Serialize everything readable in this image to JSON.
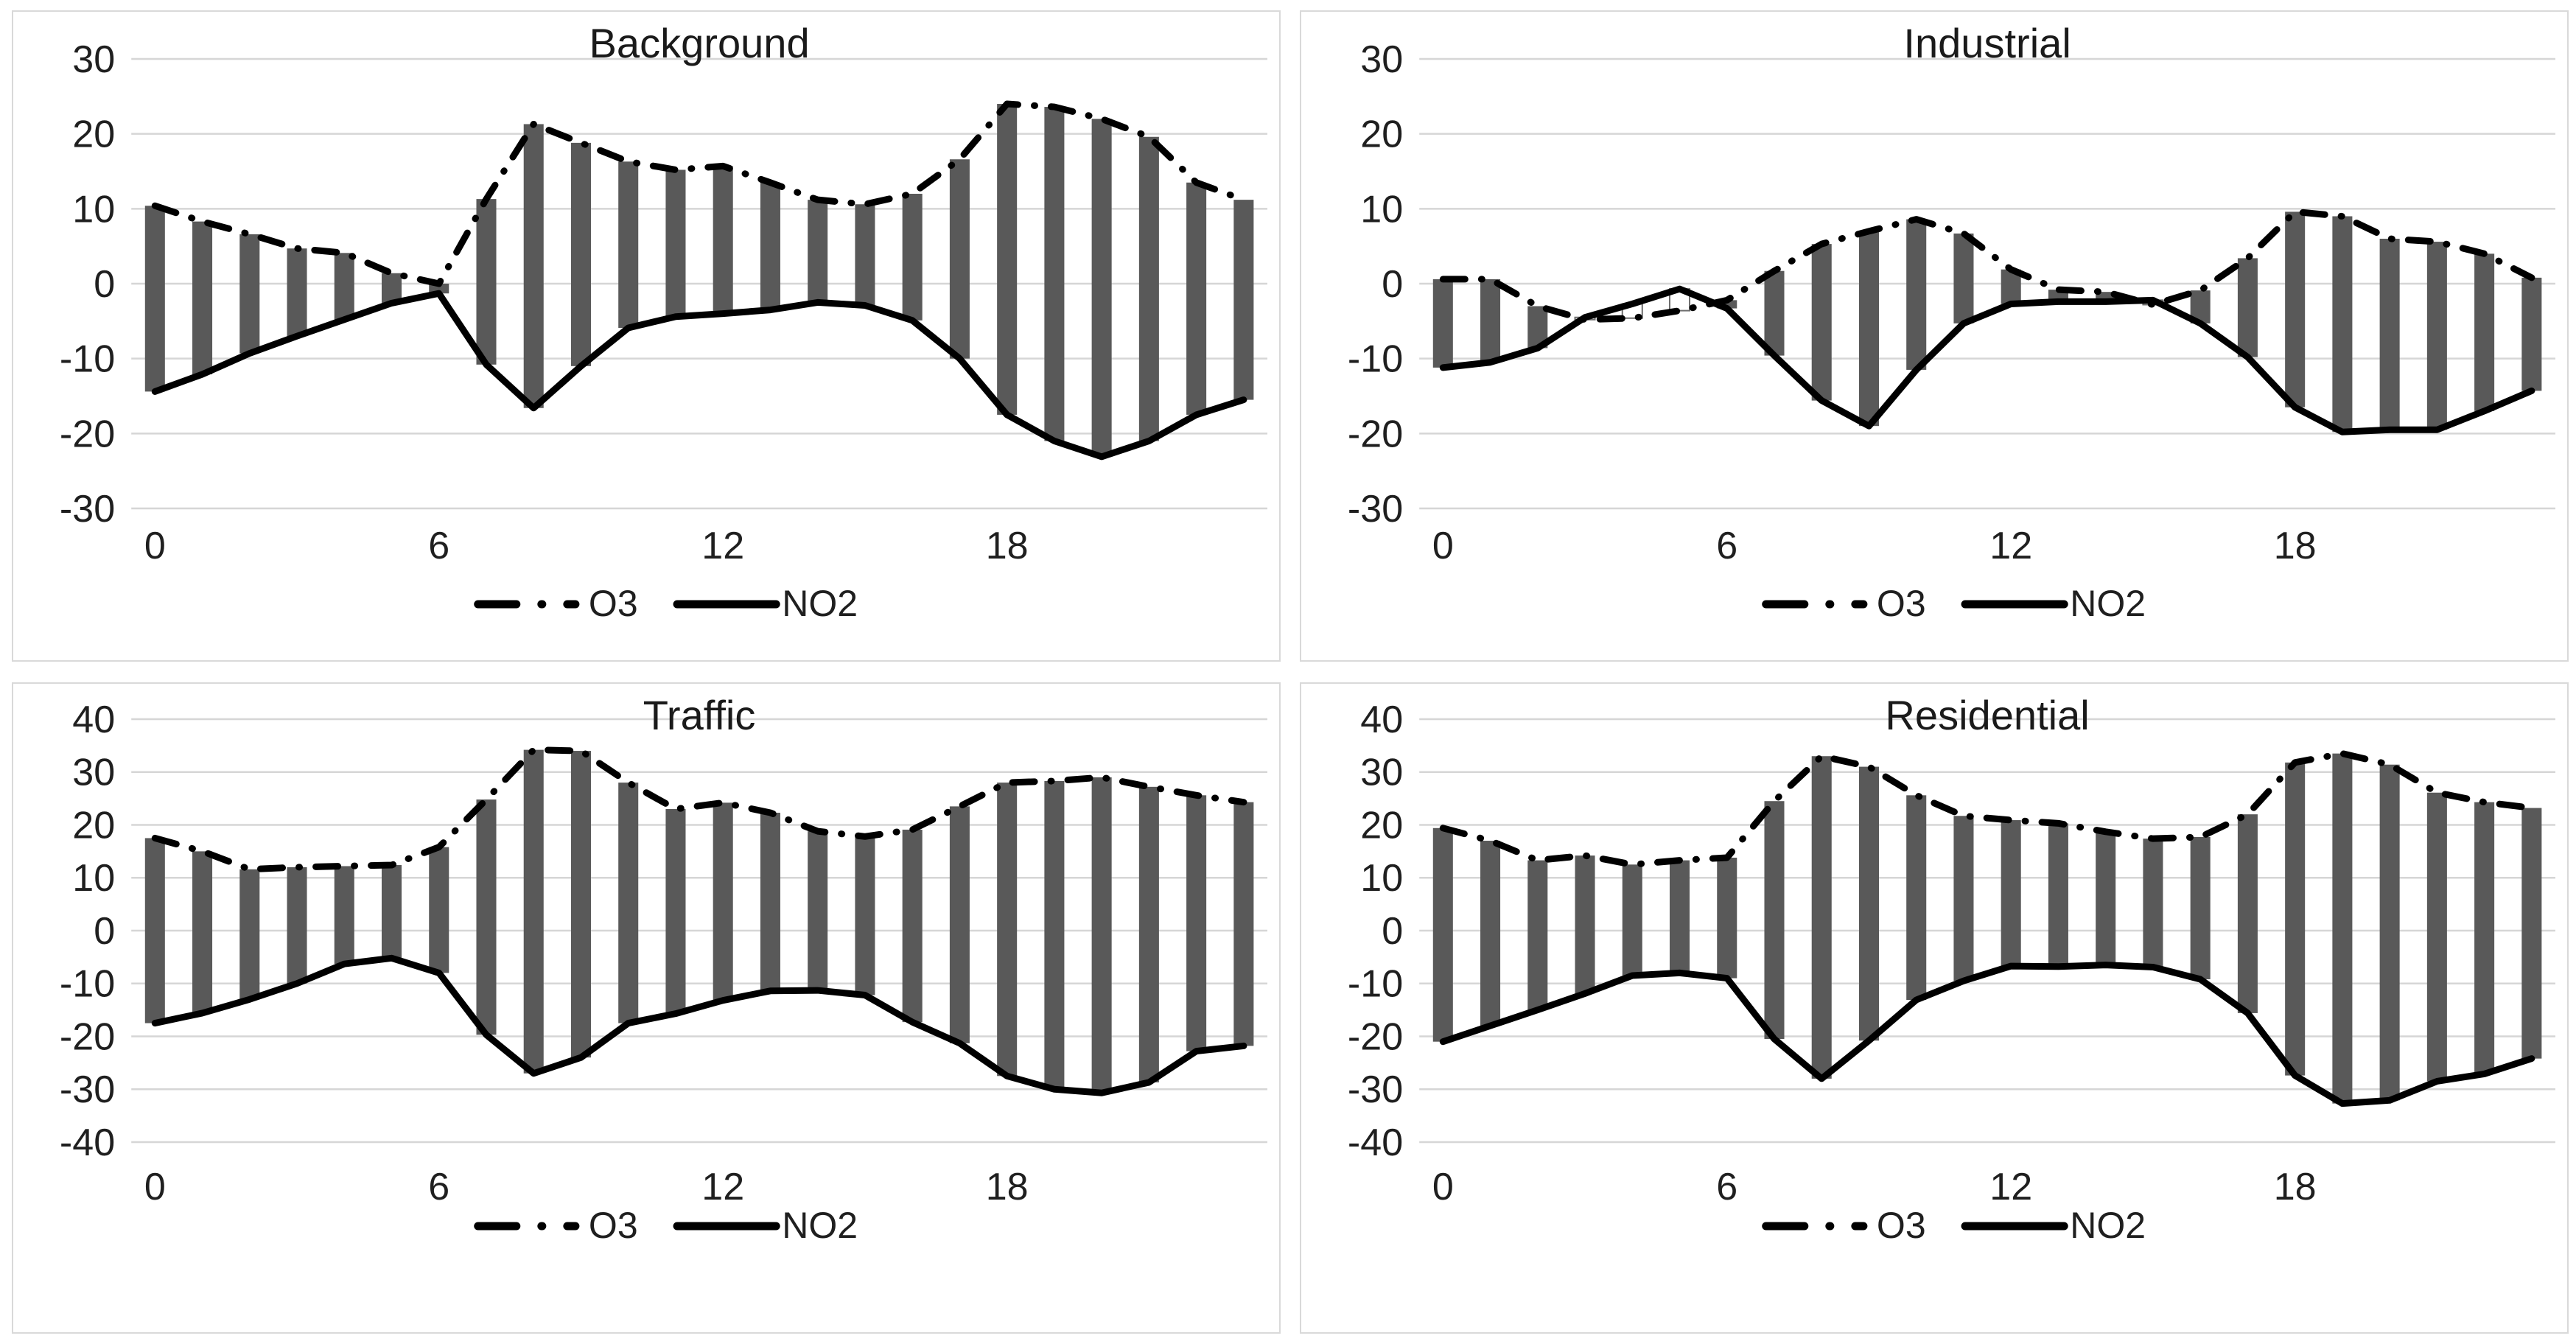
{
  "page": {
    "background_color": "#ffffff",
    "description": "Four diurnal-cycle charts (2x2) of O3 and NO2 anomalies by station type; gray floating bars span between the dashed O3 line and solid NO2 line for each hour 0-23"
  },
  "colors": {
    "bar_fill": "#595959",
    "bar_down_fill": "#ffffff",
    "bar_down_border": "#6e6e6e",
    "line": "#000000",
    "gridline": "#d6d6d6",
    "panel_border": "#d9d9d9",
    "text": "#1f1f1f"
  },
  "legend": {
    "items": [
      {
        "label": "O3",
        "style": "dash-dot"
      },
      {
        "label": "NO2",
        "style": "solid"
      }
    ]
  },
  "chart_data": [
    {
      "type": "bar",
      "subtype": "updown-bars-with-lines",
      "title": "Background",
      "x": [
        0,
        1,
        2,
        3,
        4,
        5,
        6,
        7,
        8,
        9,
        10,
        11,
        12,
        13,
        14,
        15,
        16,
        17,
        18,
        19,
        20,
        21,
        22,
        23
      ],
      "x_tick_labels": [
        "0",
        "6",
        "12",
        "18"
      ],
      "x_tick_positions": [
        0,
        6,
        12,
        18
      ],
      "ylim": [
        -30,
        30
      ],
      "y_ticks": [
        30,
        20,
        10,
        0,
        -10,
        -20,
        -30
      ],
      "grid": "horizontal",
      "legend_position": "bottom",
      "series": [
        {
          "name": "O3",
          "style": "dash-dot",
          "values": [
            10.4,
            8.3,
            6.6,
            4.7,
            4.1,
            1.4,
            0.0,
            11.3,
            21.3,
            18.8,
            16.3,
            15.2,
            15.7,
            13.5,
            11.2,
            10.6,
            12.0,
            16.6,
            24.0,
            23.6,
            22.0,
            19.6,
            13.5,
            11.2
          ]
        },
        {
          "name": "NO2",
          "style": "solid",
          "values": [
            -14.4,
            -12.1,
            -9.3,
            -7.0,
            -4.8,
            -2.6,
            -1.3,
            -10.8,
            -16.6,
            -11.0,
            -5.9,
            -4.4,
            -4.0,
            -3.5,
            -2.5,
            -2.9,
            -4.9,
            -10.0,
            -17.5,
            -21.0,
            -23.1,
            -21.0,
            -17.5,
            -15.5
          ]
        }
      ],
      "bars": "span between O3 and NO2 values at each hour"
    },
    {
      "type": "bar",
      "subtype": "updown-bars-with-lines",
      "title": "Industrial",
      "x": [
        0,
        1,
        2,
        3,
        4,
        5,
        6,
        7,
        8,
        9,
        10,
        11,
        12,
        13,
        14,
        15,
        16,
        17,
        18,
        19,
        20,
        21,
        22,
        23
      ],
      "x_tick_labels": [
        "0",
        "6",
        "12",
        "18"
      ],
      "x_tick_positions": [
        0,
        6,
        12,
        18
      ],
      "ylim": [
        -30,
        30
      ],
      "y_ticks": [
        30,
        20,
        10,
        0,
        -10,
        -20,
        -30
      ],
      "grid": "horizontal",
      "legend_position": "bottom",
      "series": [
        {
          "name": "O3",
          "style": "dash-dot",
          "values": [
            0.6,
            0.6,
            -3.0,
            -4.8,
            -4.6,
            -3.6,
            -2.2,
            1.7,
            5.3,
            7.0,
            8.6,
            6.7,
            1.9,
            -0.8,
            -1.1,
            -2.8,
            -0.9,
            3.4,
            9.6,
            9.0,
            6.0,
            5.6,
            4.0,
            0.8
          ]
        },
        {
          "name": "NO2",
          "style": "solid",
          "values": [
            -11.2,
            -10.5,
            -8.6,
            -4.5,
            -2.7,
            -0.7,
            -3.3,
            -9.6,
            -15.6,
            -19.0,
            -11.5,
            -5.3,
            -2.7,
            -2.4,
            -2.4,
            -2.2,
            -5.3,
            -9.8,
            -16.5,
            -19.8,
            -19.5,
            -19.5,
            -17.0,
            -14.3
          ]
        }
      ],
      "bars": "span between O3 and NO2 values at each hour; drawn hollow (white) where O3 < NO2 (hours 3-5, 15)"
    },
    {
      "type": "bar",
      "subtype": "updown-bars-with-lines",
      "title": "Traffic",
      "x": [
        0,
        1,
        2,
        3,
        4,
        5,
        6,
        7,
        8,
        9,
        10,
        11,
        12,
        13,
        14,
        15,
        16,
        17,
        18,
        19,
        20,
        21,
        22,
        23
      ],
      "x_tick_labels": [
        "0",
        "6",
        "12",
        "18"
      ],
      "x_tick_positions": [
        0,
        6,
        12,
        18
      ],
      "ylim": [
        -40,
        40
      ],
      "y_ticks": [
        40,
        30,
        20,
        10,
        0,
        -10,
        -20,
        -30,
        -40
      ],
      "grid": "horizontal",
      "legend_position": "bottom",
      "series": [
        {
          "name": "O3",
          "style": "dash-dot",
          "values": [
            17.5,
            15.0,
            11.6,
            12.0,
            12.2,
            12.4,
            15.8,
            24.8,
            34.2,
            34.0,
            28.0,
            23.0,
            24.2,
            22.3,
            18.8,
            17.8,
            19.1,
            23.5,
            28.0,
            28.3,
            29.0,
            27.2,
            25.6,
            24.3
          ]
        },
        {
          "name": "NO2",
          "style": "solid",
          "values": [
            -17.5,
            -15.6,
            -13.0,
            -10.0,
            -6.3,
            -5.2,
            -8.0,
            -19.7,
            -27.0,
            -24.0,
            -17.5,
            -15.7,
            -13.2,
            -11.4,
            -11.3,
            -12.2,
            -17.3,
            -21.3,
            -27.5,
            -30.0,
            -30.7,
            -28.7,
            -22.8,
            -21.8
          ]
        }
      ],
      "bars": "span between O3 and NO2 values at each hour"
    },
    {
      "type": "bar",
      "subtype": "updown-bars-with-lines",
      "title": "Residential",
      "x": [
        0,
        1,
        2,
        3,
        4,
        5,
        6,
        7,
        8,
        9,
        10,
        11,
        12,
        13,
        14,
        15,
        16,
        17,
        18,
        19,
        20,
        21,
        22,
        23
      ],
      "x_tick_labels": [
        "0",
        "6",
        "12",
        "18"
      ],
      "x_tick_positions": [
        0,
        6,
        12,
        18
      ],
      "ylim": [
        -40,
        40
      ],
      "y_ticks": [
        40,
        30,
        20,
        10,
        0,
        -10,
        -20,
        -30,
        -40
      ],
      "grid": "horizontal",
      "legend_position": "bottom",
      "series": [
        {
          "name": "O3",
          "style": "dash-dot",
          "values": [
            19.4,
            17.0,
            13.3,
            14.2,
            12.5,
            13.3,
            13.8,
            24.5,
            33.0,
            31.0,
            25.6,
            21.7,
            20.9,
            20.3,
            18.7,
            17.4,
            17.7,
            22.0,
            31.8,
            33.5,
            31.4,
            26.1,
            24.3,
            23.2
          ]
        },
        {
          "name": "NO2",
          "style": "solid",
          "values": [
            -21.0,
            -18.0,
            -15.0,
            -11.9,
            -8.5,
            -8.0,
            -9.0,
            -20.5,
            -28.0,
            -20.8,
            -13.1,
            -9.5,
            -6.7,
            -6.8,
            -6.5,
            -6.9,
            -9.2,
            -15.6,
            -27.4,
            -32.7,
            -32.1,
            -28.5,
            -27.1,
            -24.2
          ]
        }
      ],
      "bars": "span between O3 and NO2 values at each hour"
    }
  ]
}
